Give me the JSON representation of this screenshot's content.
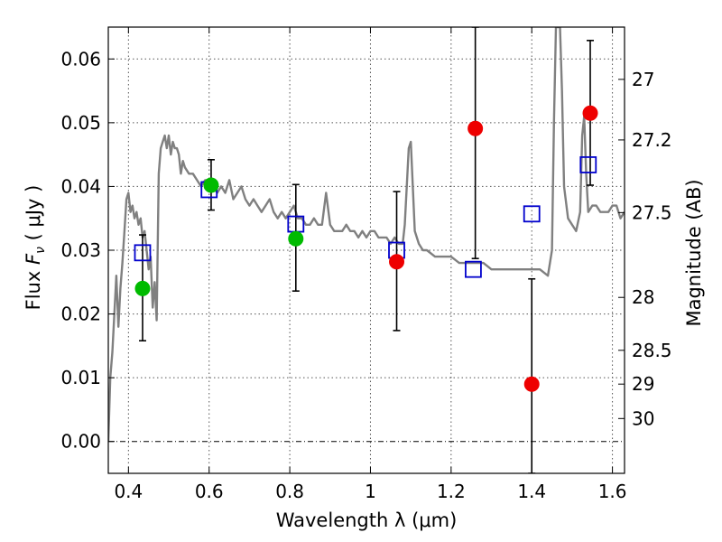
{
  "chart_data": {
    "type": "scatter",
    "xlabel": "Wavelength  λ (μm)",
    "ylabel_parts": [
      "Flux  ",
      "F",
      "ν",
      "  ( μJy )"
    ],
    "ylabel_right": "Magnitude (AB)",
    "xlim": [
      0.35,
      1.63
    ],
    "ylim": [
      -0.005,
      0.065
    ],
    "grid": true,
    "x_ticks": [
      0.4,
      0.6,
      0.8,
      1.0,
      1.2,
      1.4,
      1.6
    ],
    "x_tick_labels": [
      "0.4",
      "0.6",
      "0.8",
      "1",
      "1.2",
      "1.4",
      "1.6"
    ],
    "y_ticks": [
      0.0,
      0.01,
      0.02,
      0.03,
      0.04,
      0.05,
      0.06
    ],
    "y_tick_labels": [
      "0.00",
      "0.01",
      "0.02",
      "0.03",
      "0.04",
      "0.05",
      "0.06"
    ],
    "right_ticks": [
      {
        "label": "27",
        "flux": 0.0568
      },
      {
        "label": "27.2",
        "flux": 0.0473
      },
      {
        "label": "27.5",
        "flux": 0.0359
      },
      {
        "label": "28",
        "flux": 0.0226
      },
      {
        "label": "28.5",
        "flux": 0.0143
      },
      {
        "label": "29",
        "flux": 0.009
      },
      {
        "label": "30",
        "flux": 0.0036
      }
    ],
    "colors": {
      "model": "#808080",
      "model_photometry": "#0000cc",
      "detection": "#00bb00",
      "observed": "#ee0000",
      "errorbar": "#000000"
    },
    "series": [
      {
        "kind": "line",
        "x": [
          0.35,
          0.355,
          0.36,
          0.365,
          0.37,
          0.375,
          0.38,
          0.385,
          0.39,
          0.395,
          0.4,
          0.405,
          0.41,
          0.415,
          0.42,
          0.425,
          0.43,
          0.435,
          0.44,
          0.445,
          0.45,
          0.455,
          0.46,
          0.465,
          0.47,
          0.475,
          0.48,
          0.485,
          0.49,
          0.495,
          0.5,
          0.505,
          0.51,
          0.515,
          0.52,
          0.525,
          0.53,
          0.535,
          0.54,
          0.55,
          0.56,
          0.57,
          0.58,
          0.59,
          0.6,
          0.61,
          0.62,
          0.63,
          0.64,
          0.65,
          0.66,
          0.67,
          0.68,
          0.69,
          0.7,
          0.71,
          0.72,
          0.73,
          0.74,
          0.75,
          0.76,
          0.77,
          0.78,
          0.79,
          0.8,
          0.81,
          0.82,
          0.83,
          0.84,
          0.85,
          0.86,
          0.87,
          0.88,
          0.89,
          0.9,
          0.91,
          0.92,
          0.93,
          0.94,
          0.95,
          0.96,
          0.97,
          0.98,
          0.99,
          1.0,
          1.01,
          1.02,
          1.03,
          1.04,
          1.05,
          1.06,
          1.07,
          1.08,
          1.085,
          1.09,
          1.095,
          1.1,
          1.105,
          1.11,
          1.12,
          1.13,
          1.14,
          1.16,
          1.18,
          1.2,
          1.22,
          1.24,
          1.26,
          1.28,
          1.3,
          1.32,
          1.34,
          1.36,
          1.38,
          1.4,
          1.42,
          1.44,
          1.45,
          1.455,
          1.46,
          1.465,
          1.47,
          1.475,
          1.48,
          1.49,
          1.5,
          1.51,
          1.52,
          1.525,
          1.53,
          1.535,
          1.54,
          1.55,
          1.56,
          1.57,
          1.58,
          1.59,
          1.6,
          1.61,
          1.62,
          1.63
        ],
        "y": [
          0.0,
          0.01,
          0.014,
          0.02,
          0.026,
          0.018,
          0.024,
          0.028,
          0.033,
          0.038,
          0.039,
          0.036,
          0.037,
          0.035,
          0.036,
          0.034,
          0.035,
          0.032,
          0.033,
          0.03,
          0.027,
          0.029,
          0.021,
          0.025,
          0.019,
          0.042,
          0.046,
          0.047,
          0.048,
          0.046,
          0.048,
          0.045,
          0.047,
          0.046,
          0.046,
          0.045,
          0.042,
          0.044,
          0.043,
          0.042,
          0.042,
          0.041,
          0.04,
          0.041,
          0.041,
          0.04,
          0.039,
          0.04,
          0.039,
          0.041,
          0.038,
          0.039,
          0.04,
          0.038,
          0.037,
          0.038,
          0.037,
          0.036,
          0.037,
          0.038,
          0.036,
          0.035,
          0.036,
          0.035,
          0.036,
          0.037,
          0.035,
          0.035,
          0.034,
          0.034,
          0.035,
          0.034,
          0.034,
          0.039,
          0.034,
          0.033,
          0.033,
          0.033,
          0.034,
          0.033,
          0.033,
          0.032,
          0.033,
          0.032,
          0.033,
          0.033,
          0.032,
          0.032,
          0.032,
          0.031,
          0.032,
          0.031,
          0.031,
          0.034,
          0.04,
          0.046,
          0.047,
          0.04,
          0.033,
          0.031,
          0.03,
          0.03,
          0.029,
          0.029,
          0.029,
          0.028,
          0.028,
          0.028,
          0.028,
          0.027,
          0.027,
          0.027,
          0.027,
          0.027,
          0.027,
          0.027,
          0.026,
          0.03,
          0.05,
          0.065,
          0.065,
          0.065,
          0.055,
          0.04,
          0.035,
          0.034,
          0.033,
          0.036,
          0.048,
          0.051,
          0.042,
          0.036,
          0.037,
          0.037,
          0.036,
          0.036,
          0.036,
          0.037,
          0.037,
          0.035,
          0.036
        ]
      },
      {
        "kind": "open-square",
        "x": [
          0.435,
          0.6,
          0.815,
          1.065,
          1.255,
          1.4,
          1.54
        ],
        "y": [
          0.0296,
          0.0395,
          0.0341,
          0.03,
          0.027,
          0.0357,
          0.0434
        ]
      },
      {
        "kind": "filled-circle",
        "color_key": "detection",
        "x": [
          0.435,
          0.605,
          0.815
        ],
        "y": [
          0.024,
          0.0402,
          0.0318
        ]
      },
      {
        "kind": "filled-circle",
        "color_key": "observed",
        "x": [
          1.065,
          1.26,
          1.4,
          1.545
        ],
        "y": [
          0.0282,
          0.0491,
          0.009,
          0.0515
        ]
      },
      {
        "kind": "errorbar",
        "x": [
          0.435,
          0.605,
          0.815,
          1.065,
          1.26,
          1.4,
          1.545
        ],
        "low": [
          0.0158,
          0.0363,
          0.0236,
          0.0174,
          0.0287,
          -0.005,
          0.0402
        ],
        "high": [
          0.0324,
          0.0442,
          0.0403,
          0.0392,
          0.065,
          0.0255,
          0.0629
        ]
      }
    ]
  }
}
